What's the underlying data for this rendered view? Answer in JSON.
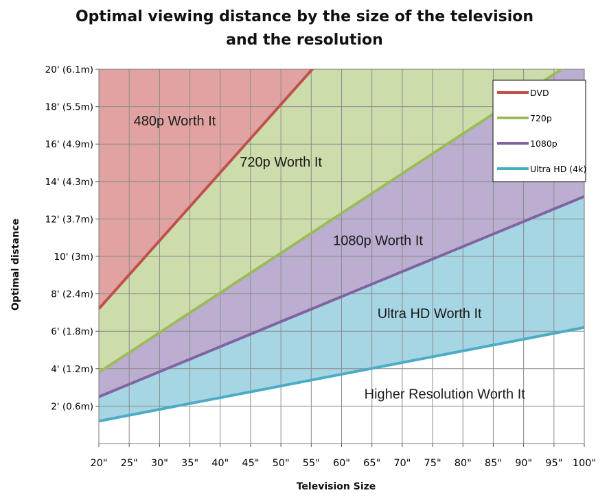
{
  "chart_data": {
    "type": "area",
    "title": "Optimal viewing distance by the size of the television and the resolution",
    "title_lines": [
      "Optimal viewing distance by the size of the television",
      "and the resolution"
    ],
    "xlabel": "Television Size",
    "ylabel": "Optimal distance",
    "xlim": [
      20,
      100
    ],
    "ylim": [
      0,
      20
    ],
    "x_tick_values": [
      20,
      25,
      30,
      35,
      40,
      45,
      50,
      55,
      60,
      65,
      70,
      75,
      80,
      85,
      90,
      95,
      100
    ],
    "x_tick_labels": [
      "20\"",
      "25\"",
      "30\"",
      "35\"",
      "40\"",
      "45\"",
      "50\"",
      "55\"",
      "60\"",
      "65\"",
      "70\"",
      "75\"",
      "80\"",
      "85\"",
      "90\"",
      "95\"",
      "100\""
    ],
    "y_tick_values": [
      2,
      4,
      6,
      8,
      10,
      12,
      14,
      16,
      18,
      20
    ],
    "y_tick_labels": [
      "2' (0.6m)",
      "4' (1.2m)",
      "6' (1.8m)",
      "8' (2.4m)",
      "10' (3m)",
      "12' (3.7m)",
      "14' (4.3m)",
      "16' (4.9m)",
      "18' (5.5m)",
      "20' (6.1m)"
    ],
    "grid": true,
    "legend_position": "top-right",
    "series": [
      {
        "name": "DVD",
        "color": "#c0504d",
        "fill": "#e0a3a2",
        "x": [
          20,
          56
        ],
        "y": [
          7.2,
          20.3
        ]
      },
      {
        "name": "720p",
        "color": "#9bbb59",
        "fill": "#cddcab",
        "x": [
          20,
          100
        ],
        "y": [
          3.8,
          20.8
        ]
      },
      {
        "name": "1080p",
        "color": "#8064a2",
        "fill": "#bcaed0",
        "x": [
          20,
          100
        ],
        "y": [
          2.5,
          13.2
        ]
      },
      {
        "name": "Ultra HD (4k)",
        "color": "#4bacc6",
        "fill": "#a6d5e3",
        "x": [
          20,
          100
        ],
        "y": [
          1.2,
          6.2
        ]
      }
    ],
    "legend_labels": [
      "DVD",
      "720p",
      "1080p",
      "Ultra HD (4k)"
    ],
    "annotations": [
      {
        "text": "480p Worth It",
        "x": 32.5,
        "y": 17
      },
      {
        "text": "720p Worth It",
        "x": 50,
        "y": 14.8
      },
      {
        "text": "1080p Worth It",
        "x": 66,
        "y": 10.6
      },
      {
        "text": "Ultra HD Worth It",
        "x": 74.5,
        "y": 6.7
      },
      {
        "text": "Higher Resolution Worth It",
        "x": 77,
        "y": 2.4
      }
    ]
  }
}
